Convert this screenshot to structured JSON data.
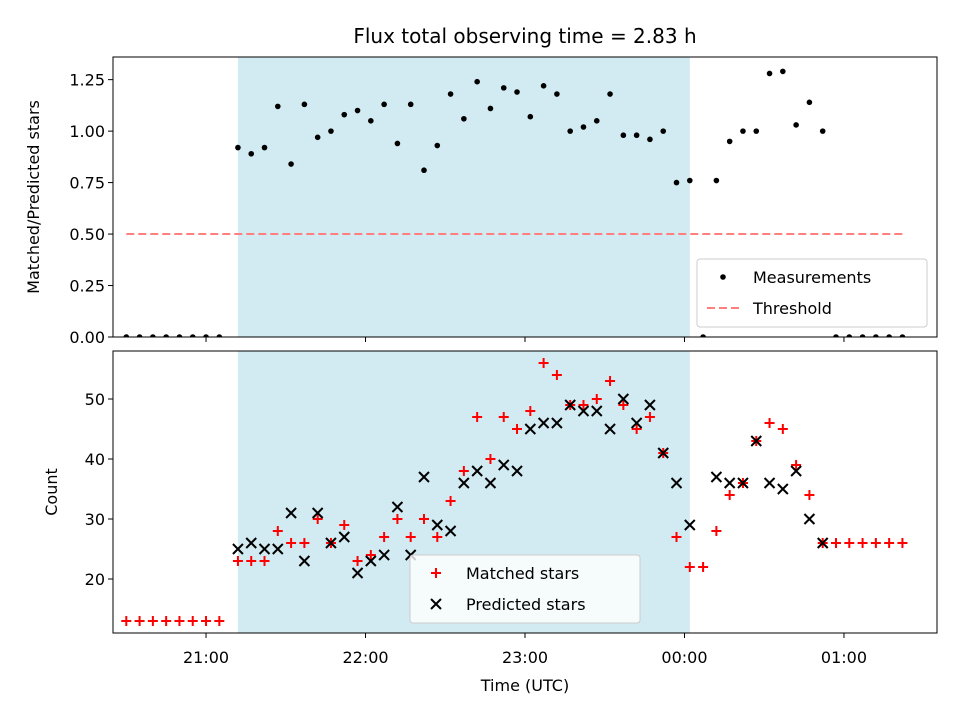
{
  "chart_data": [
    {
      "type": "scatter",
      "title": "Flux total observing time = 2.83 h",
      "xlabel": "",
      "ylabel": "Matched/Predicted stars",
      "ylim": [
        0,
        1.36
      ],
      "xlim": [
        "20:25",
        "01:35"
      ],
      "yticks": [
        "0.00",
        "0.25",
        "0.50",
        "0.75",
        "1.00",
        "1.25"
      ],
      "ytick_values": [
        0,
        0.25,
        0.5,
        0.75,
        1.0,
        1.25
      ],
      "shaded_interval": [
        "21:12",
        "00:02"
      ],
      "shade_color": "#add8e6",
      "legend": {
        "placement": "lower right",
        "entries": [
          "Measurements",
          "Threshold"
        ]
      },
      "threshold": {
        "name": "Threshold",
        "value": 0.5,
        "x_start": "20:30",
        "x_end": "01:22",
        "color": "#ff7f7f",
        "style": "dashed"
      },
      "series": [
        {
          "name": "Measurements",
          "color": "#000000",
          "marker": "dot",
          "points": [
            [
              "20:30",
              0.0
            ],
            [
              "20:35",
              0.0
            ],
            [
              "20:40",
              0.0
            ],
            [
              "20:45",
              0.0
            ],
            [
              "20:50",
              0.0
            ],
            [
              "20:55",
              0.0
            ],
            [
              "21:00",
              0.0
            ],
            [
              "21:05",
              0.0
            ],
            [
              "21:12",
              0.92
            ],
            [
              "21:17",
              0.89
            ],
            [
              "21:22",
              0.92
            ],
            [
              "21:27",
              1.12
            ],
            [
              "21:32",
              0.84
            ],
            [
              "21:37",
              1.13
            ],
            [
              "21:42",
              0.97
            ],
            [
              "21:47",
              1.0
            ],
            [
              "21:52",
              1.08
            ],
            [
              "21:57",
              1.1
            ],
            [
              "22:02",
              1.05
            ],
            [
              "22:07",
              1.13
            ],
            [
              "22:12",
              0.94
            ],
            [
              "22:17",
              1.13
            ],
            [
              "22:22",
              0.81
            ],
            [
              "22:27",
              0.93
            ],
            [
              "22:32",
              1.18
            ],
            [
              "22:37",
              1.06
            ],
            [
              "22:42",
              1.24
            ],
            [
              "22:47",
              1.11
            ],
            [
              "22:52",
              1.21
            ],
            [
              "22:57",
              1.19
            ],
            [
              "23:02",
              1.07
            ],
            [
              "23:07",
              1.22
            ],
            [
              "23:12",
              1.18
            ],
            [
              "23:17",
              1.0
            ],
            [
              "23:22",
              1.02
            ],
            [
              "23:27",
              1.05
            ],
            [
              "23:32",
              1.18
            ],
            [
              "23:37",
              0.98
            ],
            [
              "23:42",
              0.98
            ],
            [
              "23:47",
              0.96
            ],
            [
              "23:52",
              1.0
            ],
            [
              "23:57",
              0.75
            ],
            [
              "00:02",
              0.76
            ],
            [
              "00:07",
              0.0
            ],
            [
              "00:12",
              0.76
            ],
            [
              "00:17",
              0.95
            ],
            [
              "00:22",
              1.0
            ],
            [
              "00:27",
              1.0
            ],
            [
              "00:32",
              1.28
            ],
            [
              "00:37",
              1.29
            ],
            [
              "00:42",
              1.03
            ],
            [
              "00:47",
              1.14
            ],
            [
              "00:52",
              1.0
            ],
            [
              "00:57",
              0.0
            ],
            [
              "01:02",
              0.0
            ],
            [
              "01:07",
              0.0
            ],
            [
              "01:12",
              0.0
            ],
            [
              "01:17",
              0.0
            ],
            [
              "01:22",
              0.0
            ]
          ]
        }
      ]
    },
    {
      "type": "scatter",
      "title": "",
      "xlabel": "Time (UTC)",
      "ylabel": "Count",
      "ylim": [
        11,
        58
      ],
      "xlim": [
        "20:25",
        "01:35"
      ],
      "xticks": [
        "21:00",
        "22:00",
        "23:00",
        "00:00",
        "01:00"
      ],
      "yticks": [
        "20",
        "30",
        "40",
        "50"
      ],
      "ytick_values": [
        20,
        30,
        40,
        50
      ],
      "shaded_interval": [
        "21:12",
        "00:02"
      ],
      "shade_color": "#add8e6",
      "legend": {
        "placement": "lower center",
        "entries": [
          "Matched stars",
          "Predicted stars"
        ]
      },
      "series": [
        {
          "name": "Matched stars",
          "color": "#ff0000",
          "marker": "plus",
          "points": [
            [
              "20:30",
              13
            ],
            [
              "20:35",
              13
            ],
            [
              "20:40",
              13
            ],
            [
              "20:45",
              13
            ],
            [
              "20:50",
              13
            ],
            [
              "20:55",
              13
            ],
            [
              "21:00",
              13
            ],
            [
              "21:05",
              13
            ],
            [
              "21:12",
              23
            ],
            [
              "21:17",
              23
            ],
            [
              "21:22",
              23
            ],
            [
              "21:27",
              28
            ],
            [
              "21:32",
              26
            ],
            [
              "21:37",
              26
            ],
            [
              "21:42",
              30
            ],
            [
              "21:47",
              26
            ],
            [
              "21:52",
              29
            ],
            [
              "21:57",
              23
            ],
            [
              "22:02",
              24
            ],
            [
              "22:07",
              27
            ],
            [
              "22:12",
              30
            ],
            [
              "22:17",
              27
            ],
            [
              "22:22",
              30
            ],
            [
              "22:27",
              27
            ],
            [
              "22:32",
              33
            ],
            [
              "22:37",
              38
            ],
            [
              "22:42",
              47
            ],
            [
              "22:47",
              40
            ],
            [
              "22:52",
              47
            ],
            [
              "22:57",
              45
            ],
            [
              "23:02",
              48
            ],
            [
              "23:07",
              56
            ],
            [
              "23:12",
              54
            ],
            [
              "23:17",
              49
            ],
            [
              "23:22",
              49
            ],
            [
              "23:27",
              50
            ],
            [
              "23:32",
              53
            ],
            [
              "23:37",
              49
            ],
            [
              "23:42",
              45
            ],
            [
              "23:47",
              47
            ],
            [
              "23:52",
              41
            ],
            [
              "23:57",
              27
            ],
            [
              "00:02",
              22
            ],
            [
              "00:07",
              22
            ],
            [
              "00:12",
              28
            ],
            [
              "00:17",
              34
            ],
            [
              "00:22",
              36
            ],
            [
              "00:27",
              43
            ],
            [
              "00:32",
              46
            ],
            [
              "00:37",
              45
            ],
            [
              "00:42",
              39
            ],
            [
              "00:47",
              34
            ],
            [
              "00:52",
              26
            ],
            [
              "00:57",
              26
            ],
            [
              "01:02",
              26
            ],
            [
              "01:07",
              26
            ],
            [
              "01:12",
              26
            ],
            [
              "01:17",
              26
            ],
            [
              "01:22",
              26
            ]
          ]
        },
        {
          "name": "Predicted stars",
          "color": "#000000",
          "marker": "x",
          "points": [
            [
              "21:12",
              25
            ],
            [
              "21:17",
              26
            ],
            [
              "21:22",
              25
            ],
            [
              "21:27",
              25
            ],
            [
              "21:32",
              31
            ],
            [
              "21:37",
              23
            ],
            [
              "21:42",
              31
            ],
            [
              "21:47",
              26
            ],
            [
              "21:52",
              27
            ],
            [
              "21:57",
              21
            ],
            [
              "22:02",
              23
            ],
            [
              "22:07",
              24
            ],
            [
              "22:12",
              32
            ],
            [
              "22:17",
              24
            ],
            [
              "22:22",
              37
            ],
            [
              "22:27",
              29
            ],
            [
              "22:32",
              28
            ],
            [
              "22:37",
              36
            ],
            [
              "22:42",
              38
            ],
            [
              "22:47",
              36
            ],
            [
              "22:52",
              39
            ],
            [
              "22:57",
              38
            ],
            [
              "23:02",
              45
            ],
            [
              "23:07",
              46
            ],
            [
              "23:12",
              46
            ],
            [
              "23:17",
              49
            ],
            [
              "23:22",
              48
            ],
            [
              "23:27",
              48
            ],
            [
              "23:32",
              45
            ],
            [
              "23:37",
              50
            ],
            [
              "23:42",
              46
            ],
            [
              "23:47",
              49
            ],
            [
              "23:52",
              41
            ],
            [
              "23:57",
              36
            ],
            [
              "00:02",
              29
            ],
            [
              "00:12",
              37
            ],
            [
              "00:17",
              36
            ],
            [
              "00:22",
              36
            ],
            [
              "00:27",
              43
            ],
            [
              "00:32",
              36
            ],
            [
              "00:37",
              35
            ],
            [
              "00:42",
              38
            ],
            [
              "00:47",
              30
            ],
            [
              "00:52",
              26
            ]
          ]
        }
      ]
    }
  ]
}
